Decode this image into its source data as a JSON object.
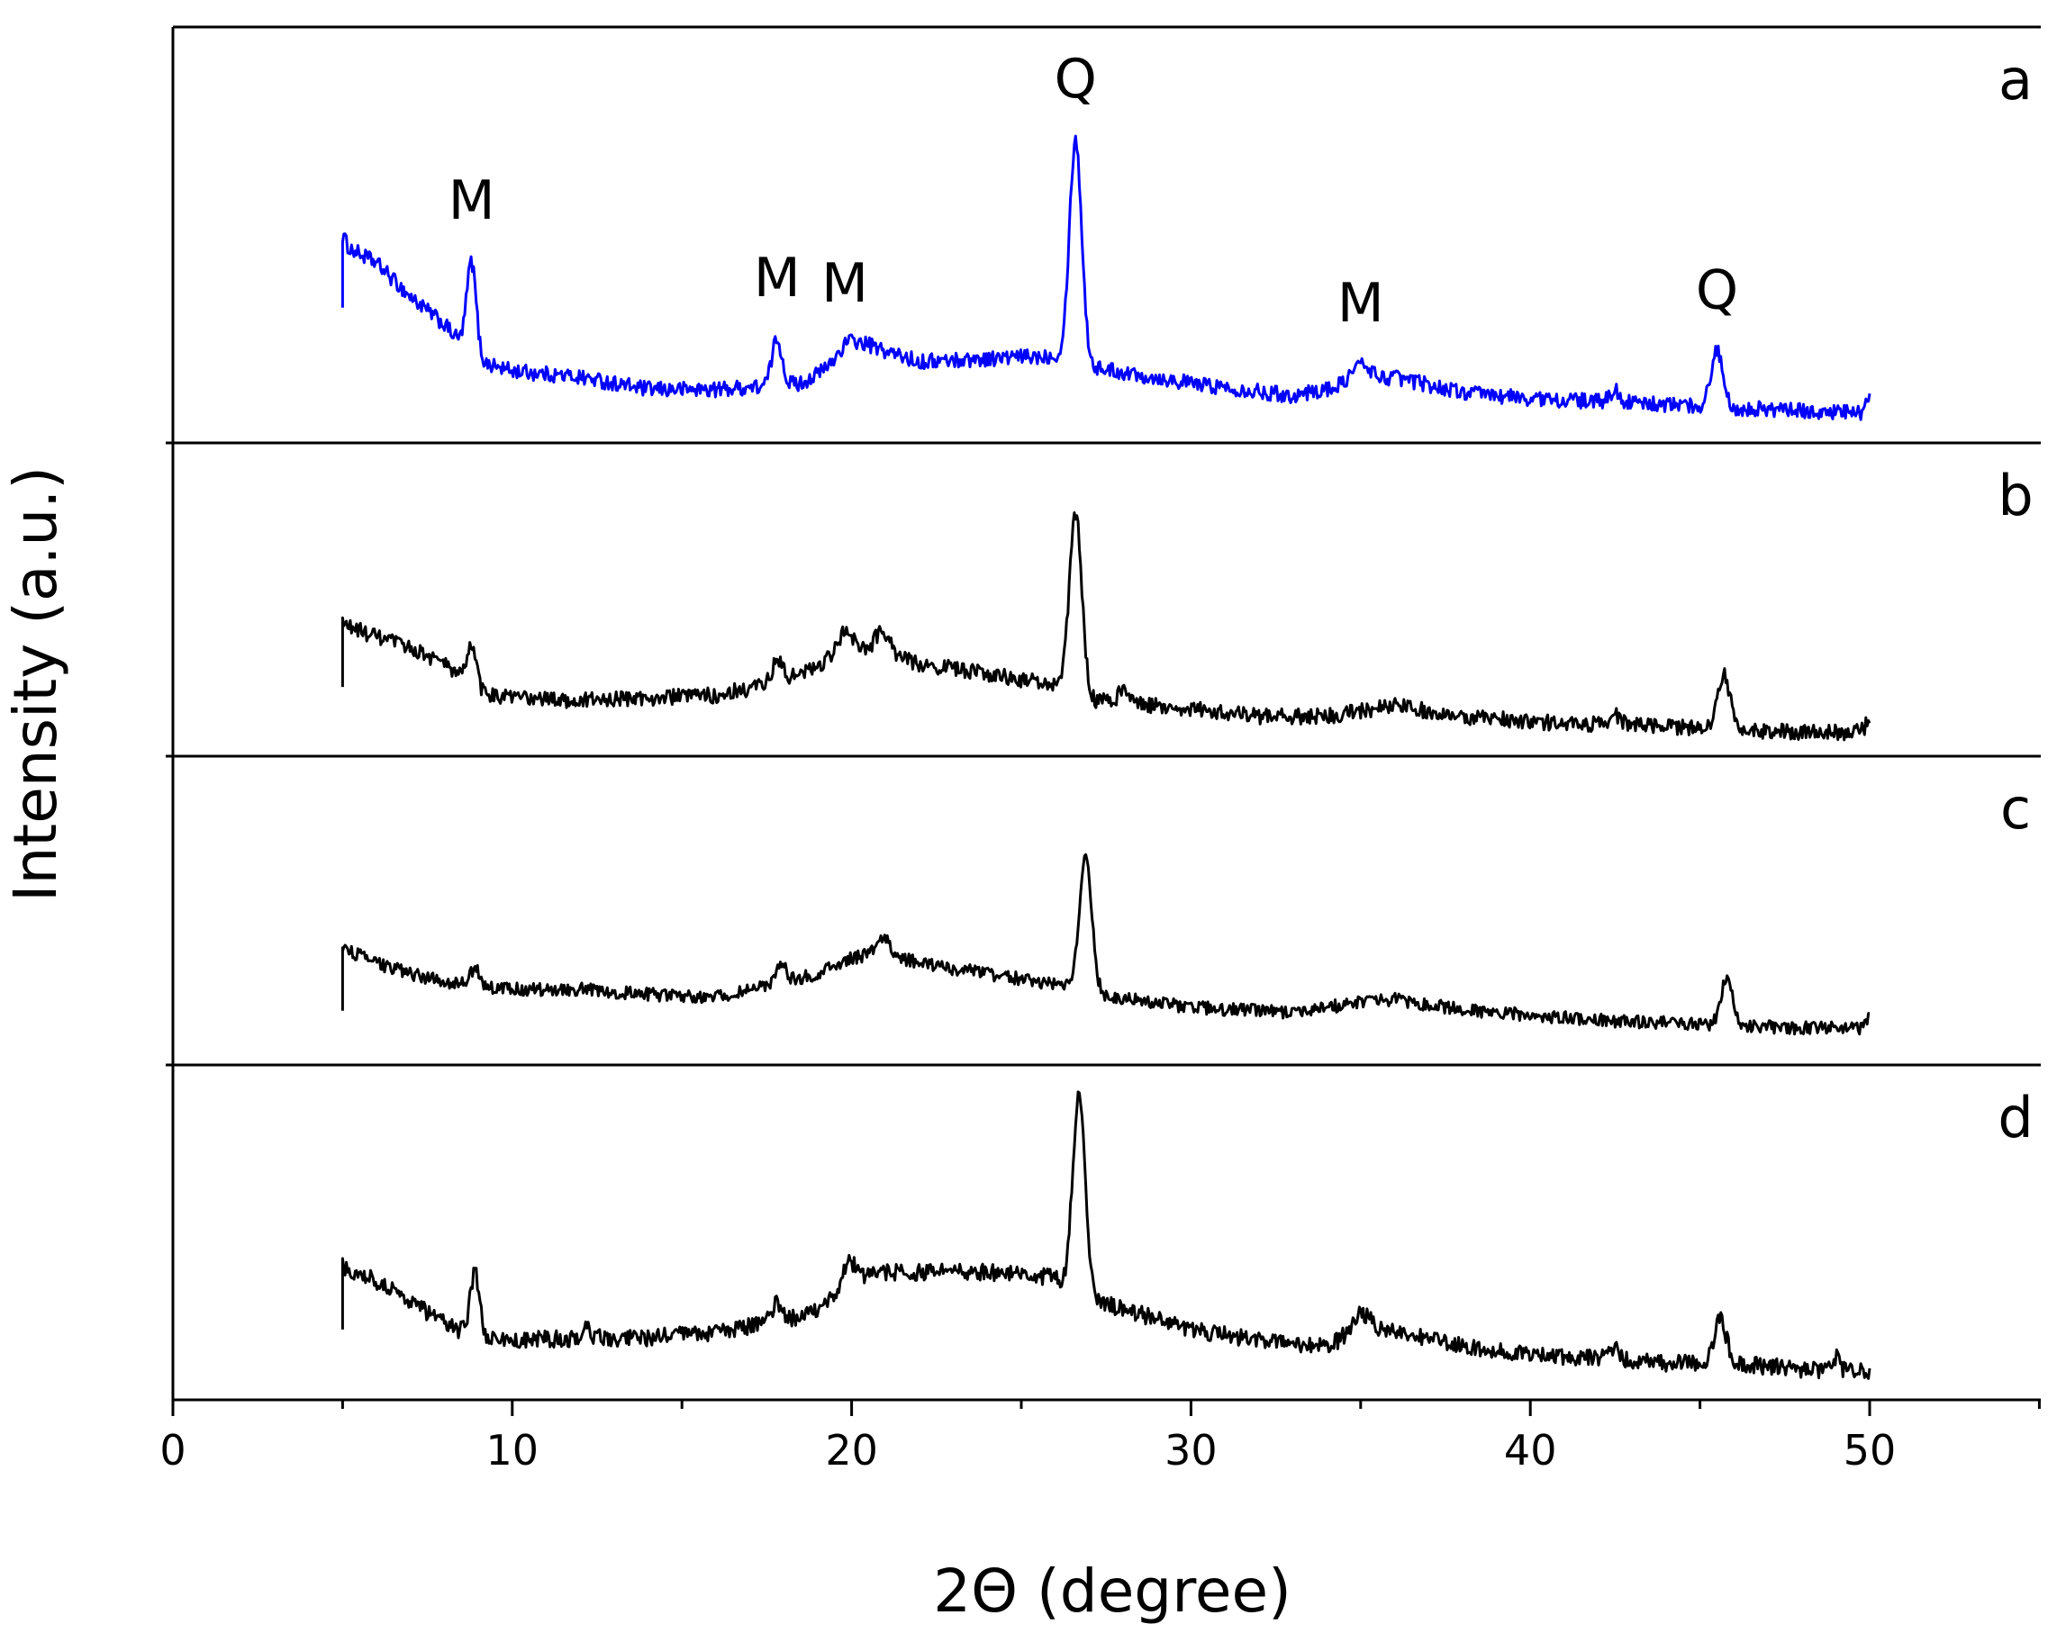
{
  "chart_data": {
    "type": "line",
    "xlabel": "2Θ (degree)",
    "ylabel": "Intensity (a.u.)",
    "xlim": [
      0,
      55
    ],
    "x_ticks": [
      0,
      10,
      20,
      30,
      40,
      50
    ],
    "x_range_data": [
      5,
      50
    ],
    "grid": false,
    "colors": {
      "a": "#0000ff",
      "b": "#000000",
      "c": "#000000",
      "d": "#000000"
    },
    "panels": [
      {
        "label": "a",
        "color": "#0000ff",
        "peak_labels": [
          {
            "text": "M",
            "x": 8.8
          },
          {
            "text": "M",
            "x": 17.8
          },
          {
            "text": "M",
            "x": 19.8
          },
          {
            "text": "Q",
            "x": 26.6
          },
          {
            "text": "M",
            "x": 35.0
          },
          {
            "text": "Q",
            "x": 45.5
          }
        ],
        "baseline": [
          [
            5,
            0.6
          ],
          [
            6,
            0.54
          ],
          [
            7,
            0.43
          ],
          [
            8,
            0.34
          ],
          [
            9,
            0.22
          ],
          [
            10,
            0.19
          ],
          [
            12,
            0.17
          ],
          [
            14,
            0.13
          ],
          [
            16,
            0.13
          ],
          [
            17.5,
            0.14
          ],
          [
            18.5,
            0.15
          ],
          [
            19.5,
            0.21
          ],
          [
            20.5,
            0.27
          ],
          [
            22,
            0.22
          ],
          [
            24,
            0.23
          ],
          [
            26,
            0.24
          ],
          [
            27.2,
            0.2
          ],
          [
            30,
            0.15
          ],
          [
            33,
            0.11
          ],
          [
            34.5,
            0.14
          ],
          [
            36,
            0.17
          ],
          [
            38,
            0.12
          ],
          [
            40,
            0.1
          ],
          [
            42,
            0.09
          ],
          [
            44,
            0.08
          ],
          [
            46,
            0.07
          ],
          [
            48,
            0.06
          ],
          [
            50,
            0.05
          ]
        ],
        "peaks": [
          {
            "center": 5.0,
            "height": 0.03,
            "width": 0.08
          },
          {
            "center": 8.8,
            "height": 0.3,
            "width": 0.14
          },
          {
            "center": 17.8,
            "height": 0.15,
            "width": 0.15
          },
          {
            "center": 19.9,
            "height": 0.05,
            "width": 0.3
          },
          {
            "center": 26.6,
            "height": 0.72,
            "width": 0.18
          },
          {
            "center": 35.0,
            "height": 0.06,
            "width": 0.3
          },
          {
            "center": 42.5,
            "height": 0.04,
            "width": 0.15
          },
          {
            "center": 45.5,
            "height": 0.18,
            "width": 0.18
          },
          {
            "center": 50.0,
            "height": 0.05,
            "width": 0.1
          }
        ],
        "noise": 0.025
      },
      {
        "label": "b",
        "color": "#000000",
        "peak_labels": [],
        "baseline": [
          [
            5,
            0.45
          ],
          [
            6,
            0.4
          ],
          [
            7,
            0.36
          ],
          [
            8,
            0.3
          ],
          [
            9,
            0.19
          ],
          [
            10,
            0.17
          ],
          [
            12,
            0.16
          ],
          [
            14,
            0.17
          ],
          [
            16,
            0.18
          ],
          [
            17.5,
            0.22
          ],
          [
            18.5,
            0.26
          ],
          [
            20,
            0.36
          ],
          [
            21,
            0.34
          ],
          [
            22,
            0.3
          ],
          [
            24,
            0.26
          ],
          [
            26,
            0.22
          ],
          [
            27.2,
            0.16
          ],
          [
            30,
            0.13
          ],
          [
            32,
            0.1
          ],
          [
            34,
            0.1
          ],
          [
            36,
            0.14
          ],
          [
            38,
            0.1
          ],
          [
            40,
            0.08
          ],
          [
            42,
            0.07
          ],
          [
            44,
            0.06
          ],
          [
            46,
            0.05
          ],
          [
            48,
            0.04
          ],
          [
            50,
            0.04
          ]
        ],
        "peaks": [
          {
            "center": 8.8,
            "height": 0.16,
            "width": 0.14
          },
          {
            "center": 17.8,
            "height": 0.08,
            "width": 0.15
          },
          {
            "center": 19.8,
            "height": 0.08,
            "width": 0.2
          },
          {
            "center": 20.9,
            "height": 0.08,
            "width": 0.2
          },
          {
            "center": 26.6,
            "height": 0.68,
            "width": 0.18
          },
          {
            "center": 28.0,
            "height": 0.06,
            "width": 0.12
          },
          {
            "center": 42.5,
            "height": 0.04,
            "width": 0.15
          },
          {
            "center": 45.7,
            "height": 0.21,
            "width": 0.18
          },
          {
            "center": 50.0,
            "height": 0.06,
            "width": 0.1
          }
        ],
        "noise": 0.03
      },
      {
        "label": "c",
        "color": "#000000",
        "peak_labels": [],
        "baseline": [
          [
            5,
            0.4
          ],
          [
            6,
            0.34
          ],
          [
            7,
            0.3
          ],
          [
            8,
            0.27
          ],
          [
            9,
            0.25
          ],
          [
            10,
            0.24
          ],
          [
            12,
            0.24
          ],
          [
            14,
            0.22
          ],
          [
            16,
            0.21
          ],
          [
            17.5,
            0.25
          ],
          [
            19,
            0.3
          ],
          [
            20,
            0.36
          ],
          [
            21,
            0.38
          ],
          [
            22,
            0.34
          ],
          [
            24,
            0.3
          ],
          [
            26,
            0.26
          ],
          [
            27.2,
            0.22
          ],
          [
            30,
            0.17
          ],
          [
            33,
            0.15
          ],
          [
            35,
            0.19
          ],
          [
            36,
            0.2
          ],
          [
            38,
            0.16
          ],
          [
            40,
            0.14
          ],
          [
            42,
            0.12
          ],
          [
            44,
            0.11
          ],
          [
            46,
            0.1
          ],
          [
            48,
            0.09
          ],
          [
            50,
            0.09
          ]
        ],
        "peaks": [
          {
            "center": 8.9,
            "height": 0.07,
            "width": 0.14
          },
          {
            "center": 17.9,
            "height": 0.08,
            "width": 0.15
          },
          {
            "center": 20.9,
            "height": 0.06,
            "width": 0.2
          },
          {
            "center": 26.9,
            "height": 0.52,
            "width": 0.18
          },
          {
            "center": 45.8,
            "height": 0.18,
            "width": 0.18
          },
          {
            "center": 50.0,
            "height": 0.04,
            "width": 0.1
          }
        ],
        "noise": 0.025
      },
      {
        "label": "d",
        "color": "#000000",
        "peak_labels": [],
        "baseline": [
          [
            5,
            0.42
          ],
          [
            6,
            0.37
          ],
          [
            7,
            0.3
          ],
          [
            8,
            0.22
          ],
          [
            9,
            0.17
          ],
          [
            10,
            0.16
          ],
          [
            12,
            0.17
          ],
          [
            14,
            0.17
          ],
          [
            16,
            0.19
          ],
          [
            17.5,
            0.22
          ],
          [
            19,
            0.26
          ],
          [
            20,
            0.38
          ],
          [
            21,
            0.4
          ],
          [
            22,
            0.4
          ],
          [
            24,
            0.4
          ],
          [
            26,
            0.38
          ],
          [
            27.2,
            0.3
          ],
          [
            30,
            0.2
          ],
          [
            32,
            0.16
          ],
          [
            34,
            0.14
          ],
          [
            35,
            0.2
          ],
          [
            36,
            0.2
          ],
          [
            38,
            0.14
          ],
          [
            40,
            0.11
          ],
          [
            42,
            0.1
          ],
          [
            44,
            0.08
          ],
          [
            46,
            0.08
          ],
          [
            48,
            0.06
          ],
          [
            50,
            0.05
          ]
        ],
        "peaks": [
          {
            "center": 8.9,
            "height": 0.22,
            "width": 0.14
          },
          {
            "center": 12.2,
            "height": 0.05,
            "width": 0.1
          },
          {
            "center": 17.8,
            "height": 0.06,
            "width": 0.15
          },
          {
            "center": 19.9,
            "height": 0.06,
            "width": 0.2
          },
          {
            "center": 26.7,
            "height": 0.7,
            "width": 0.18
          },
          {
            "center": 35.0,
            "height": 0.06,
            "width": 0.25
          },
          {
            "center": 42.5,
            "height": 0.04,
            "width": 0.15
          },
          {
            "center": 45.6,
            "height": 0.15,
            "width": 0.18
          },
          {
            "center": 49.0,
            "height": 0.05,
            "width": 0.1
          }
        ],
        "noise": 0.03
      }
    ]
  }
}
